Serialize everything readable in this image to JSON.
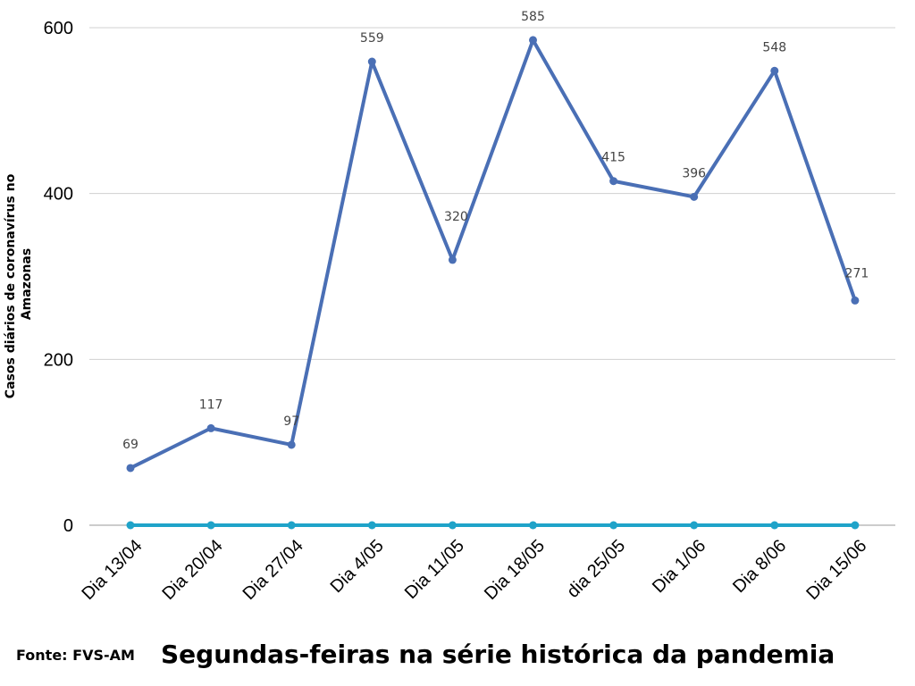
{
  "chart_data": {
    "type": "line",
    "title": "Segundas-feiras na série histórica da pandemia",
    "ylabel_lines": [
      "Casos diários de coronavírus no",
      "Amazonas"
    ],
    "categories": [
      "Dia 13/04",
      "Dia 20/04",
      "Dia 27/04",
      "Dia 4/05",
      "Dia 11/05",
      "Dia 18/05",
      "dia 25/05",
      "Dia 1/06",
      "Dia 8/06",
      "Dia 15/06"
    ],
    "series": [
      {
        "values": [
          69,
          117,
          97,
          559,
          320,
          585,
          415,
          396,
          548,
          271
        ],
        "color": "#4a6fb5",
        "data_labels": true
      },
      {
        "values": [
          0,
          0,
          0,
          0,
          0,
          0,
          0,
          0,
          0,
          0
        ],
        "color": "#1fa3c9",
        "data_labels": false
      }
    ],
    "ylim": [
      0,
      600
    ],
    "yticks": [
      0,
      200,
      400,
      600
    ],
    "grid": true,
    "legend": "none"
  },
  "source": "Fonte: FVS-AM"
}
